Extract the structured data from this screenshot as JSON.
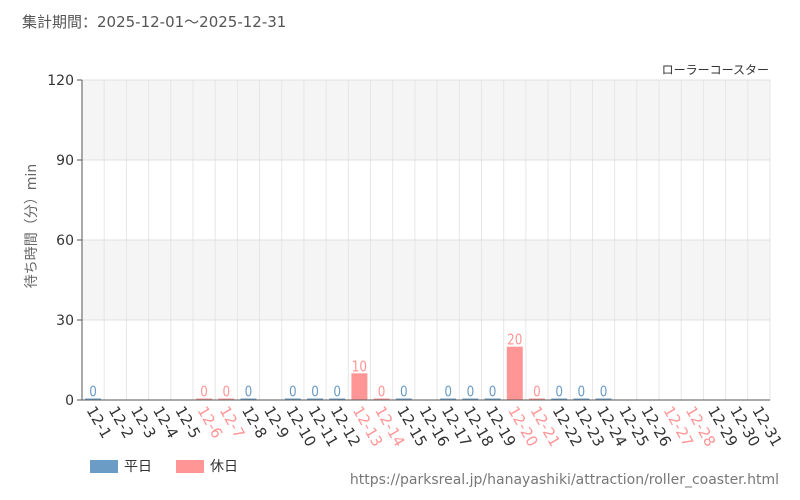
{
  "header": {
    "period_label": "集計期間：2025-12-01～2025-12-31"
  },
  "legend": {
    "weekday_label": "平日",
    "holiday_label": "休日",
    "weekday_color": "#6a9cc6",
    "holiday_color": "#ff9595"
  },
  "source_url": "https://parksreal.jp/hanayashiki/attraction/roller_coaster.html",
  "chart_data": {
    "type": "bar",
    "title": "ローラーコースター",
    "ylabel": "待ち時間（分）min",
    "ylim": [
      0,
      120
    ],
    "yticks": [
      0,
      30,
      60,
      90,
      120
    ],
    "grid": true,
    "categories": [
      "12-1",
      "12-2",
      "12-3",
      "12-4",
      "12-5",
      "12-6",
      "12-7",
      "12-8",
      "12-9",
      "12-10",
      "12-11",
      "12-12",
      "12-13",
      "12-14",
      "12-15",
      "12-16",
      "12-17",
      "12-18",
      "12-19",
      "12-20",
      "12-21",
      "12-22",
      "12-23",
      "12-24",
      "12-25",
      "12-26",
      "12-27",
      "12-28",
      "12-29",
      "12-30",
      "12-31"
    ],
    "values": [
      0,
      null,
      null,
      null,
      null,
      0,
      0,
      0,
      null,
      0,
      0,
      0,
      10,
      0,
      0,
      null,
      0,
      0,
      0,
      20,
      0,
      0,
      0,
      0,
      null,
      null,
      null,
      null,
      null,
      null,
      null
    ],
    "day_type": [
      "weekday",
      "weekday",
      "weekday",
      "weekday",
      "weekday",
      "holiday",
      "holiday",
      "weekday",
      "weekday",
      "weekday",
      "weekday",
      "weekday",
      "holiday",
      "holiday",
      "weekday",
      "weekday",
      "weekday",
      "weekday",
      "weekday",
      "holiday",
      "holiday",
      "weekday",
      "weekday",
      "weekday",
      "weekday",
      "weekday",
      "holiday",
      "holiday",
      "weekday",
      "weekday",
      "weekday"
    ],
    "colors": {
      "weekday": "#6a9cc6",
      "holiday": "#ff9595"
    }
  }
}
